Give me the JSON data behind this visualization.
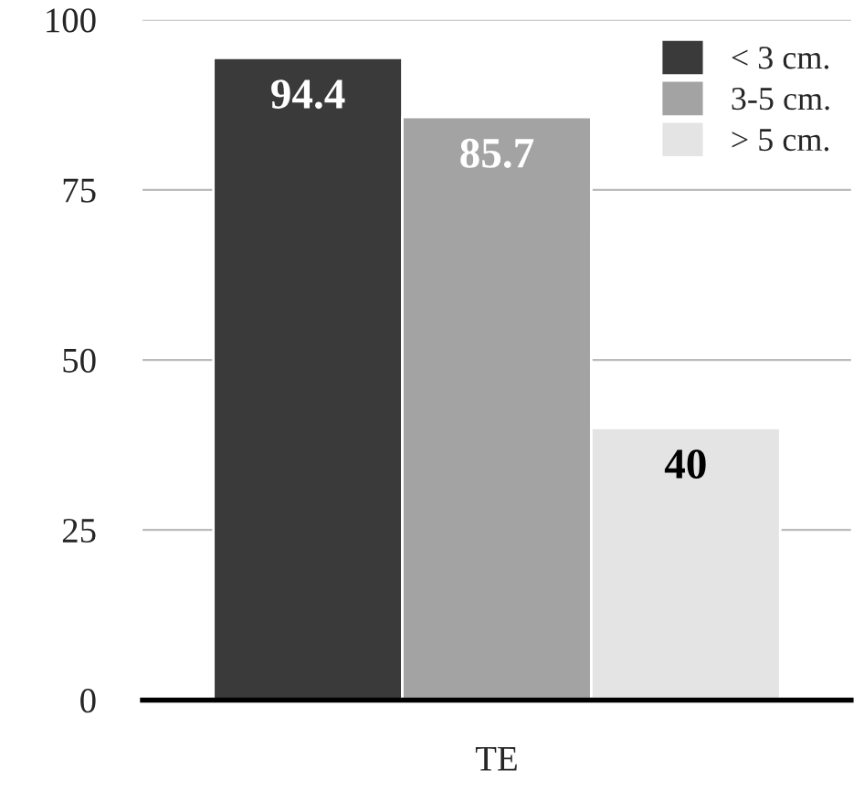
{
  "chart_data": {
    "type": "bar",
    "categories": [
      "TE"
    ],
    "series": [
      {
        "name": "< 3 cm.",
        "color": "#3a3a3a",
        "values": [
          94.4
        ]
      },
      {
        "name": "3-5 cm.",
        "color": "#a3a3a3",
        "values": [
          85.7
        ]
      },
      {
        "name": "> 5 cm.",
        "color": "#e4e4e4",
        "values": [
          40
        ]
      }
    ],
    "ylim": [
      0,
      100
    ],
    "yticks": [
      0,
      25,
      50,
      75,
      100
    ],
    "grid": "y",
    "legend": "top right",
    "data_labels": true
  }
}
